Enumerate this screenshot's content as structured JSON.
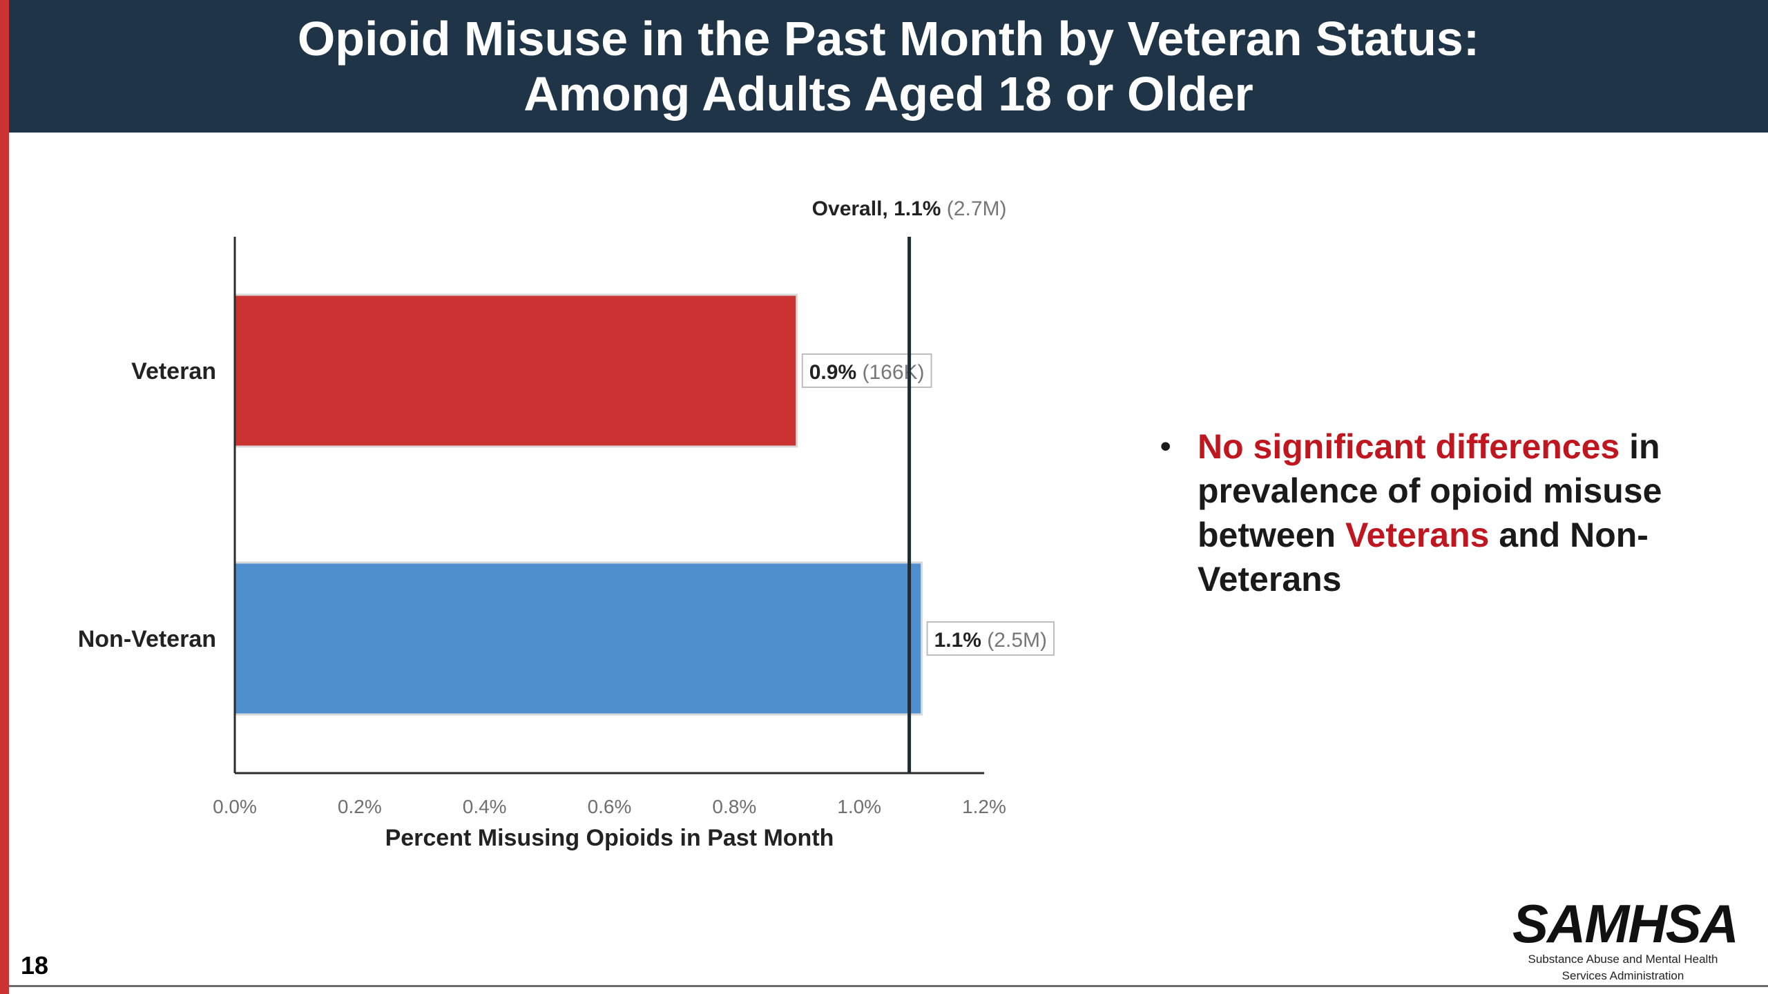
{
  "slide": {
    "title_line1": "Opioid Misuse in the Past Month by Veteran Status:",
    "title_line2": "Among Adults Aged 18 or Older",
    "number": "18"
  },
  "bullet": {
    "marker": "•",
    "part1": "No significant differences",
    "part2": " in prevalence of opioid misuse between ",
    "part3": "Veterans",
    "part4": " and Non-Veterans"
  },
  "logo": {
    "name": "SAMHSA",
    "sub_line1": "Substance Abuse and Mental Health",
    "sub_line2": "Services Administration"
  },
  "colors": {
    "header": "#1f3547",
    "accent_red": "#cc3333",
    "veteran_bar": "#cc3333",
    "non_veteran_bar": "#4f8fcd"
  },
  "chart_data": {
    "type": "bar",
    "orientation": "horizontal",
    "categories": [
      "Veteran",
      "Non-Veteran"
    ],
    "values": [
      0.9,
      1.1
    ],
    "value_labels": [
      "0.9%",
      "1.1%"
    ],
    "counts": [
      "(166K)",
      "(2.5M)"
    ],
    "bar_colors": [
      "#cc3333",
      "#4f8fcd"
    ],
    "xlabel": "Percent Misusing Opioids in Past Month",
    "xlim": [
      0,
      1.2
    ],
    "xticks": [
      0,
      0.2,
      0.4,
      0.6,
      0.8,
      1.0,
      1.2
    ],
    "xtick_labels": [
      "0.0%",
      "0.2%",
      "0.4%",
      "0.6%",
      "0.8%",
      "1.0%",
      "1.2%"
    ],
    "reference_line": {
      "value": 1.1,
      "label": "Overall, 1.1%",
      "count": "(2.7M)"
    }
  }
}
